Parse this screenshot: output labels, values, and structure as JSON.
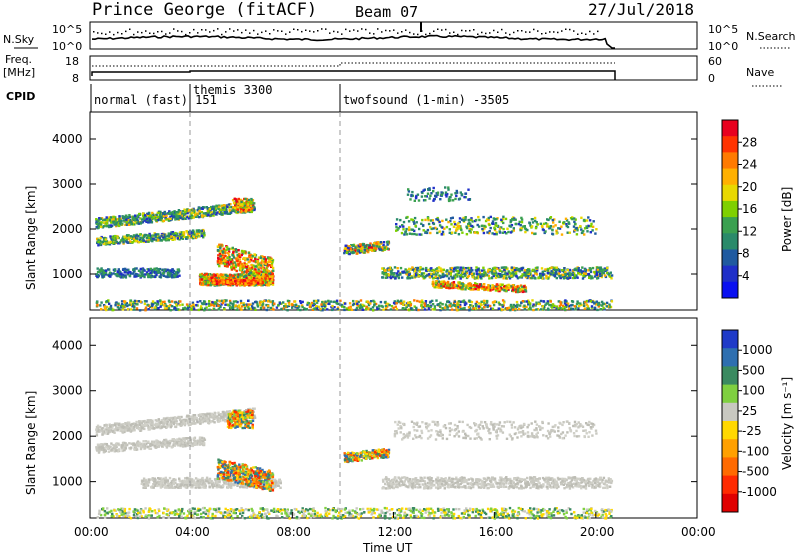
{
  "header": {
    "station": "Prince George (fitACF)",
    "beam": "Beam 07",
    "date": "27/Jul/2018"
  },
  "nsky_panel": {
    "label": "N.Sky",
    "left_ticks": [
      "10^5",
      "10^0"
    ],
    "right_ticks": [
      "10^5",
      "10^0"
    ],
    "right_label": "N.Search"
  },
  "freq_panel": {
    "label_line1": "Freq.",
    "label_line2": "[MHz]",
    "left_ticks": [
      "18",
      "8"
    ],
    "right_ticks": [
      "60",
      "0"
    ],
    "right_label": "Nave"
  },
  "cpid_panel": {
    "label": "CPID",
    "modes": [
      {
        "text": "normal (fast) 151",
        "start_hour": 0.1
      },
      {
        "text": "themis 3300",
        "start_hour": 4.0
      },
      {
        "text": "twofsound (1-min) -3505",
        "start_hour": 10.0
      }
    ]
  },
  "power_panel": {
    "ylabel": "Slant Range [km]",
    "yticks": [
      1000,
      2000,
      3000,
      4000
    ],
    "colorbar_label": "Power [dB]",
    "colorbar_ticks": [
      "28",
      "24",
      "20",
      "16",
      "12",
      "8",
      "4"
    ],
    "colorbar_colors": [
      "#e8001f",
      "#ff3300",
      "#ff7a00",
      "#ffb000",
      "#e8d800",
      "#7fd000",
      "#3aa050",
      "#2a8a6a",
      "#1f5aa0",
      "#1f2fc8",
      "#0a10f0"
    ]
  },
  "velocity_panel": {
    "ylabel": "Slant Range [km]",
    "yticks": [
      1000,
      2000,
      3000,
      4000
    ],
    "colorbar_label": "Velocity [m s⁻¹]",
    "colorbar_ticks": [
      "1000",
      "500",
      "100",
      "25",
      "-25",
      "-100",
      "-500",
      "-1000"
    ],
    "colorbar_colors": [
      "#1f3ac8",
      "#2e6fb0",
      "#3a8a60",
      "#7fd040",
      "#c8c8c0",
      "#ffd800",
      "#ffa000",
      "#ff6a00",
      "#ff2a00",
      "#e00000"
    ]
  },
  "time_axis": {
    "ticks": [
      "00:00",
      "04:00",
      "08:00",
      "12:00",
      "16:00",
      "20:00",
      "00:00"
    ],
    "label": "Time UT"
  },
  "colors": {
    "dashed_line": "#999999",
    "low_power": "#1f2fc8",
    "mid_power": "#3aa050",
    "high_power": "#ff3300",
    "ground_scatter": "#c8c8c0"
  }
}
